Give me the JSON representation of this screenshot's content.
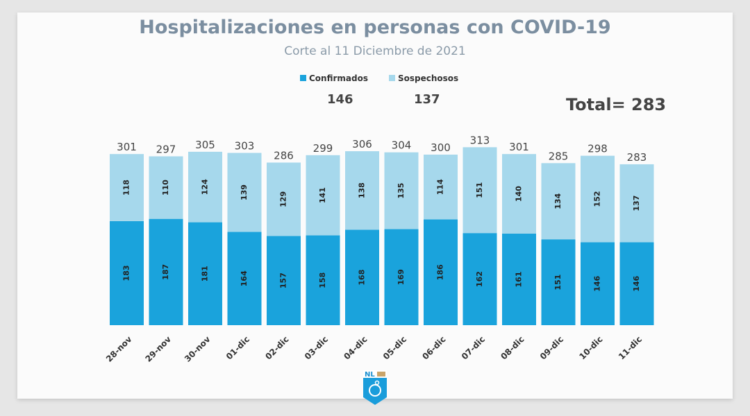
{
  "chart_data": {
    "type": "bar",
    "stacked": true,
    "title": "Hospitalizaciones en personas con COVID-19",
    "subtitle": "Corte al 11 Diciembre de 2021",
    "categories": [
      "28-nov",
      "29-nov",
      "30-nov",
      "01-dic",
      "02-dic",
      "03-dic",
      "04-dic",
      "05-dic",
      "06-dic",
      "07-dic",
      "08-dic",
      "09-dic",
      "10-dic",
      "11-dic"
    ],
    "series": [
      {
        "name": "Confirmados",
        "color": "#1aa3dc",
        "values": [
          183,
          187,
          181,
          164,
          157,
          158,
          168,
          169,
          186,
          162,
          161,
          151,
          146,
          146
        ]
      },
      {
        "name": "Sospechosos",
        "color": "#a6d8ec",
        "values": [
          118,
          110,
          124,
          139,
          129,
          141,
          138,
          135,
          114,
          151,
          140,
          134,
          152,
          137
        ]
      }
    ],
    "totals": [
      301,
      297,
      305,
      303,
      286,
      299,
      306,
      304,
      300,
      313,
      301,
      285,
      298,
      283
    ],
    "legend_values": [
      "146",
      "137"
    ],
    "total_label": "Total= 283",
    "legend_position": "top",
    "grid": false
  },
  "logo_text": "NL"
}
